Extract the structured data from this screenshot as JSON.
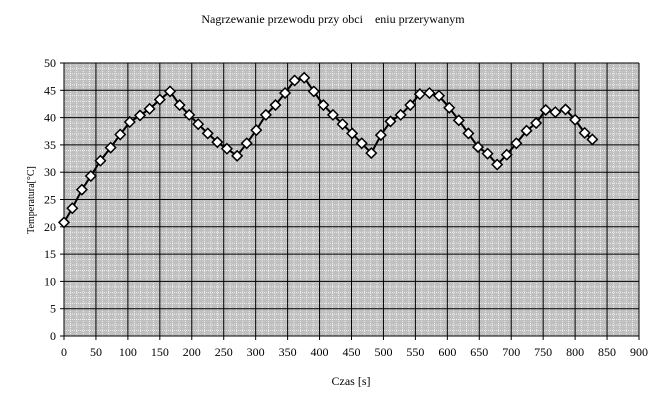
{
  "chart_data": {
    "type": "line",
    "title": "Nagrzewanie przewodu przy obci    eniu przerywanym",
    "xlabel": "Czas [s]",
    "ylabel": "Temperatura[°C]",
    "xlim": [
      0,
      900
    ],
    "ylim": [
      0,
      50
    ],
    "xticks": [
      0,
      50,
      100,
      150,
      200,
      250,
      300,
      350,
      400,
      450,
      500,
      550,
      600,
      650,
      700,
      750,
      800,
      850,
      900
    ],
    "yticks": [
      0,
      5,
      10,
      15,
      20,
      25,
      30,
      35,
      40,
      45,
      50
    ],
    "grid": true,
    "grid_minor": true,
    "plot_background": "#c0c0c0",
    "line_color": "#000000",
    "marker": "diamond",
    "marker_fill": "#ffffff",
    "series": [
      {
        "x": [
          0,
          13,
          28,
          42,
          57,
          73,
          88,
          103,
          119,
          134,
          150,
          166,
          181,
          196,
          210,
          225,
          240,
          255,
          271,
          286,
          301,
          316,
          331,
          346,
          361,
          376,
          391,
          406,
          421,
          436,
          451,
          466,
          481,
          496,
          511,
          527,
          542,
          557,
          572,
          587,
          603,
          618,
          633,
          648,
          663,
          678,
          693,
          708,
          724,
          739,
          754,
          769,
          785,
          800,
          815,
          827
        ],
        "y": [
          20.8,
          23.4,
          26.8,
          29.3,
          32.1,
          34.5,
          36.9,
          39.2,
          40.4,
          41.6,
          43.3,
          44.8,
          42.3,
          40.5,
          38.8,
          37.1,
          35.5,
          34.3,
          33.0,
          35.3,
          37.7,
          40.5,
          42.3,
          44.5,
          46.8,
          47.3,
          44.8,
          42.3,
          40.5,
          38.8,
          37.1,
          35.3,
          33.5,
          36.8,
          39.3,
          40.5,
          42.3,
          44.3,
          44.5,
          44.0,
          41.8,
          39.5,
          37.1,
          34.6,
          33.4,
          31.4,
          33.2,
          35.3,
          37.6,
          39.0,
          41.4,
          41.0,
          41.5,
          39.6,
          37.2,
          36.0
        ]
      }
    ]
  }
}
